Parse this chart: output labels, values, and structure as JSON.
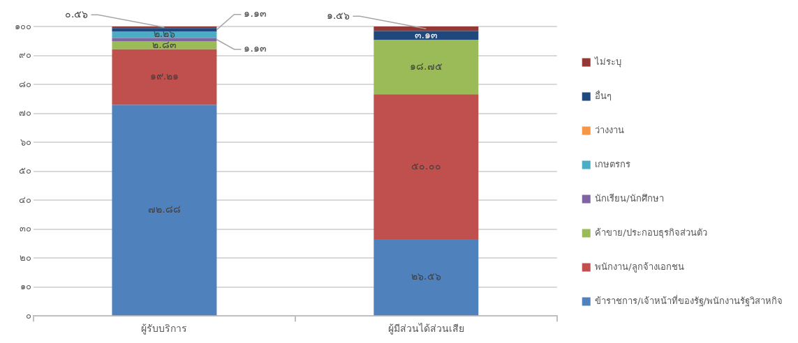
{
  "chart_data": {
    "type": "bar",
    "stacked": true,
    "categories": [
      "ผู้รับบริการ",
      "ผู้มีส่วนได้ส่วนเสีย"
    ],
    "series": [
      {
        "name": "ข้าราชการ/เจ้าหน้าที่ของรัฐ/พนักงานรัฐวิสาหกิจ",
        "color": "#4f81bd",
        "values": [
          72.88,
          26.56
        ],
        "value_labels": [
          "๗๒.๘๘",
          "๒๖.๕๖"
        ]
      },
      {
        "name": "พนักงาน/ลูกจ้างเอกชน",
        "color": "#c0504d",
        "values": [
          19.21,
          50.0
        ],
        "value_labels": [
          "๑๙.๒๑",
          "๕๐.๐๐"
        ]
      },
      {
        "name": "ค้าขาย/ประกอบธุรกิจส่วนตัว",
        "color": "#9bbb59",
        "values": [
          2.83,
          18.75
        ],
        "value_labels": [
          "๒.๘๓",
          "๑๘.๗๕"
        ]
      },
      {
        "name": "นักเรียน/นักศึกษา",
        "color": "#8064a2",
        "values": [
          1.13,
          0
        ],
        "value_labels": [
          "๑.๑๓",
          null
        ]
      },
      {
        "name": "เกษตรกร",
        "color": "#4bacc6",
        "values": [
          2.26,
          0
        ],
        "value_labels": [
          "๒.๒๖",
          null
        ]
      },
      {
        "name": "ว่างงาน",
        "color": "#f79646",
        "values": [
          0,
          0
        ],
        "value_labels": [
          null,
          null
        ]
      },
      {
        "name": "อื่นๆ",
        "color": "#1f497d",
        "values": [
          1.13,
          3.13
        ],
        "value_labels": [
          "๑.๑๓",
          "๓.๑๓"
        ]
      },
      {
        "name": "ไม่ระบุ",
        "color": "#953735",
        "values": [
          0.56,
          1.56
        ],
        "value_labels": [
          "๐.๕๖",
          "๑.๕๖"
        ]
      }
    ],
    "ylim": [
      0,
      100
    ],
    "yticks": [
      {
        "value": 0,
        "label": "๐"
      },
      {
        "value": 10,
        "label": "๑๐"
      },
      {
        "value": 20,
        "label": "๒๐"
      },
      {
        "value": 30,
        "label": "๓๐"
      },
      {
        "value": 40,
        "label": "๔๐"
      },
      {
        "value": 50,
        "label": "๕๐"
      },
      {
        "value": 60,
        "label": "๖๐"
      },
      {
        "value": 70,
        "label": "๗๐"
      },
      {
        "value": 80,
        "label": "๘๐"
      },
      {
        "value": 90,
        "label": "๙๐"
      },
      {
        "value": 100,
        "label": "๑๐๐"
      }
    ],
    "grid": "y",
    "legend": "right"
  }
}
